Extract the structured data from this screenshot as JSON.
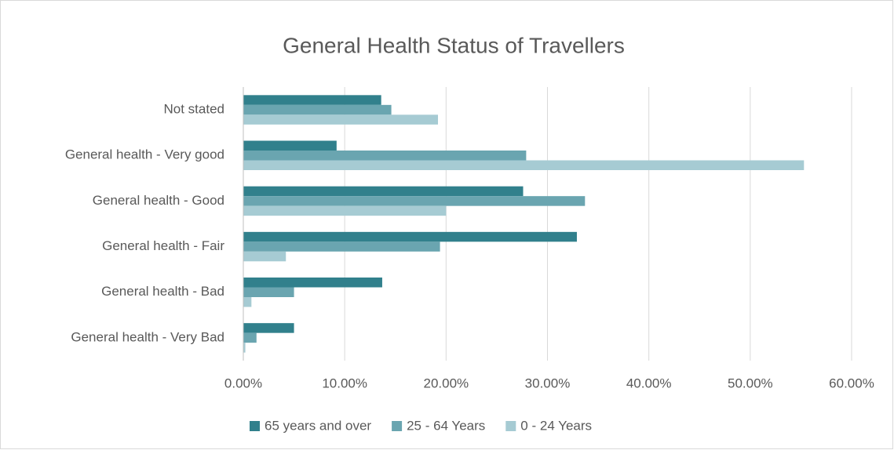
{
  "chart_data": {
    "type": "hbar",
    "title": "General Health Status of Travellers",
    "categories": [
      "Not stated",
      "General health - Very good",
      "General health - Good",
      "General health - Fair",
      "General health - Bad",
      "General health - Very Bad"
    ],
    "series": [
      {
        "name": "65 years and over",
        "color": "#31808c",
        "values": [
          13.6,
          9.2,
          27.6,
          32.9,
          13.7,
          5.0
        ]
      },
      {
        "name": "25 - 64 Years",
        "color": "#6aa5b0",
        "values": [
          14.6,
          27.9,
          33.7,
          19.4,
          5.0,
          1.3
        ]
      },
      {
        "name": "0 - 24 Years",
        "color": "#a6cbd3",
        "values": [
          19.2,
          55.3,
          20.0,
          4.2,
          0.8,
          0.2
        ]
      }
    ],
    "xlim": [
      0,
      60
    ],
    "xticks": [
      {
        "value": 0,
        "label": "0.00%"
      },
      {
        "value": 10,
        "label": "10.00%"
      },
      {
        "value": 20,
        "label": "20.00%"
      },
      {
        "value": 30,
        "label": "30.00%"
      },
      {
        "value": 40,
        "label": "40.00%"
      },
      {
        "value": 50,
        "label": "50.00%"
      },
      {
        "value": 60,
        "label": "60.00%"
      }
    ],
    "grid": true,
    "legend": "bottom"
  }
}
